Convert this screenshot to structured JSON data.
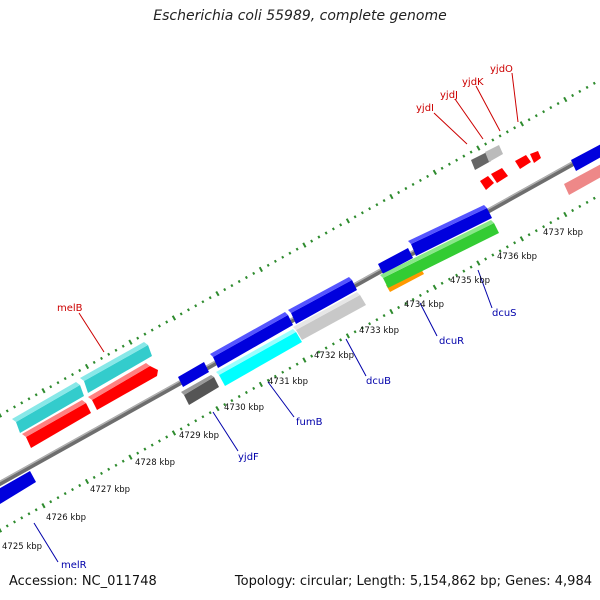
{
  "title": "Escherichia coli 55989, complete genome",
  "footer": {
    "accession": "Accession: NC_011748",
    "topology": "Topology: circular; Length: 5,154,862 bp; Genes: 4,984"
  },
  "colors": {
    "backbone": "#8a8a8a",
    "forward_tick": "#2e8b2e",
    "reverse_tick": "#2e8b2e",
    "label_forward": "#cc0000",
    "label_reverse": "#0000aa"
  },
  "tick_labels": [
    "4725 kbp",
    "4726 kbp",
    "4727 kbp",
    "4728 kbp",
    "4729 kbp",
    "4730 kbp",
    "4731 kbp",
    "4732 kbp",
    "4733 kbp",
    "4734 kbp",
    "4735 kbp",
    "4736 kbp",
    "4737 kbp"
  ],
  "gene_labels_top": [
    {
      "name": "melB"
    },
    {
      "name": "yjdI"
    },
    {
      "name": "yjdJ"
    },
    {
      "name": "yjdK"
    },
    {
      "name": "yjdO"
    }
  ],
  "gene_labels_bottom": [
    {
      "name": "melR"
    },
    {
      "name": "yjdF"
    },
    {
      "name": "fumB"
    },
    {
      "name": "dcuB"
    },
    {
      "name": "dcuR"
    },
    {
      "name": "dcuS"
    }
  ],
  "features": [
    {
      "name": "melR-block",
      "color": "#0000dd"
    },
    {
      "name": "melB-cyan-a",
      "color": "#33cccc"
    },
    {
      "name": "melB-cyan-b",
      "color": "#33cccc"
    },
    {
      "name": "melB-red-a",
      "color": "#ff0000"
    },
    {
      "name": "melB-red-b",
      "color": "#ff0000"
    },
    {
      "name": "yjdF-blue",
      "color": "#0000dd"
    },
    {
      "name": "yjdF-gray",
      "color": "#555555"
    },
    {
      "name": "fumB-blue",
      "color": "#0000dd"
    },
    {
      "name": "fumB-cyan",
      "color": "#00ffff"
    },
    {
      "name": "dcuB-blue",
      "color": "#0000dd"
    },
    {
      "name": "dcuB-silver",
      "color": "#c8c8c8"
    },
    {
      "name": "dcuR-blue",
      "color": "#0000dd"
    },
    {
      "name": "dcuR-orange",
      "color": "#ff9900"
    },
    {
      "name": "dcuS-blue",
      "color": "#0000dd"
    },
    {
      "name": "dcuS-green",
      "color": "#33cc33"
    },
    {
      "name": "yjd-gray-dark",
      "color": "#666666"
    },
    {
      "name": "yjd-gray-light",
      "color": "#bbbbbb"
    },
    {
      "name": "yjd-red-1",
      "color": "#ff0000"
    },
    {
      "name": "yjd-red-2",
      "color": "#ff0000"
    },
    {
      "name": "yjd-red-3",
      "color": "#ff0000"
    },
    {
      "name": "right-blue",
      "color": "#0000dd"
    },
    {
      "name": "right-pink",
      "color": "#ee8888"
    }
  ]
}
